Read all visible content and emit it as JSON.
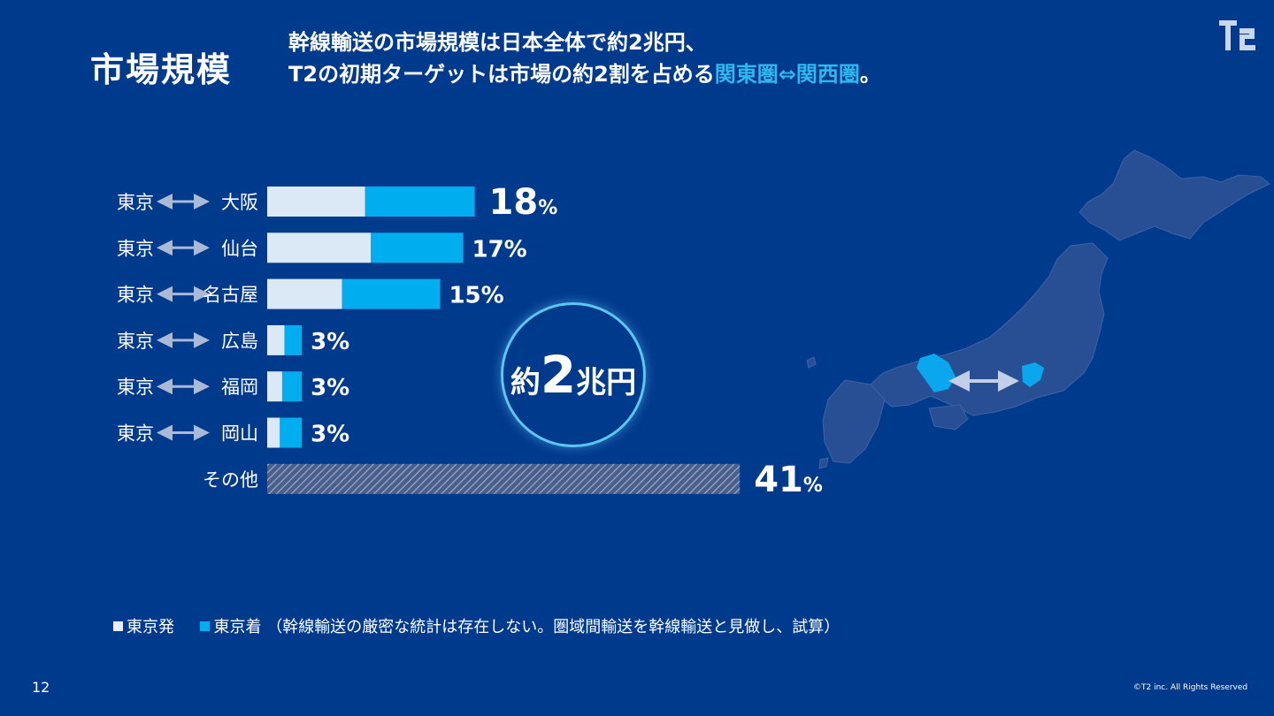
{
  "header": {
    "title": "市場規模",
    "headline_line1": "幹線輸送の市場規模は日本全体で約2兆円、",
    "headline_line2_prefix": "T2の初期ターゲットは市場の約2割を占める",
    "headline_line2_highlight": "関東圏⇔関西圏",
    "headline_line2_suffix": "。"
  },
  "logo": {
    "name": "t2-logo-icon"
  },
  "badge": {
    "prefix": "約",
    "number": "2",
    "suffix": "兆円"
  },
  "legend": {
    "departure": "東京発",
    "arrival": "東京着",
    "note": "（幹線輸送の厳密な統計は存在しない。圏域間輸送を幹線輸送と見做し、試算）"
  },
  "footer": {
    "page_number": "12",
    "copyright": "©T2 inc.  All Rights Reserved"
  },
  "map": {
    "highlight_regions": [
      "関西",
      "関東"
    ],
    "icon": "japan-map-icon"
  },
  "colors": {
    "background": "#003a8c",
    "departure": "#dbe8f6",
    "arrival": "#00aeef",
    "highlight": "#2fb8f0",
    "other_hatch": "#7d8fb3"
  },
  "chart_data": {
    "type": "bar",
    "orientation": "horizontal",
    "stacked": true,
    "categories": [
      {
        "from": "東京",
        "to": "大阪"
      },
      {
        "from": "東京",
        "to": "仙台"
      },
      {
        "from": "東京",
        "to": "名古屋"
      },
      {
        "from": "東京",
        "to": "広島"
      },
      {
        "from": "東京",
        "to": "福岡"
      },
      {
        "from": "東京",
        "to": "岡山"
      },
      {
        "from": "",
        "to": "その他"
      }
    ],
    "series": [
      {
        "name": "東京発",
        "values": [
          8.5,
          9,
          6.5,
          1.5,
          1.3,
          1.1,
          null
        ]
      },
      {
        "name": "東京着",
        "values": [
          9.5,
          8,
          8.5,
          1.5,
          1.7,
          1.9,
          null
        ]
      },
      {
        "name": "",
        "values": [
          null,
          null,
          null,
          null,
          null,
          null,
          41
        ]
      }
    ],
    "totals": [
      18,
      17,
      15,
      3,
      3,
      3,
      41
    ],
    "value_labels": [
      {
        "num": "18",
        "unit": "%"
      },
      {
        "num": "17%",
        "unit": ""
      },
      {
        "num": "15%",
        "unit": ""
      },
      {
        "num": "3%",
        "unit": ""
      },
      {
        "num": "3%",
        "unit": ""
      },
      {
        "num": "3%",
        "unit": ""
      },
      {
        "num": "41",
        "unit": "%"
      }
    ],
    "xlim": [
      0,
      41
    ],
    "grid": false
  }
}
